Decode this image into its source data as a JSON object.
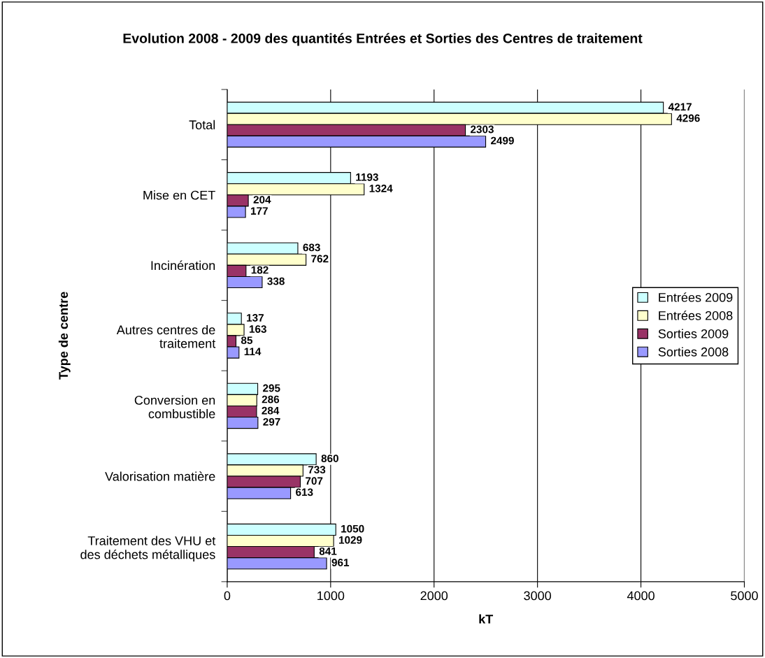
{
  "chart_data": {
    "type": "bar",
    "orientation": "horizontal",
    "title": "Evolution 2008 - 2009 des quantités Entrées et Sorties des Centres de traitement",
    "xlabel": "kT",
    "ylabel": "Type de centre",
    "categories": [
      "Total",
      "Mise en CET",
      "Incinération",
      "Autres centres de\ntraitement",
      "Conversion en\ncombustible",
      "Valorisation matière",
      "Traitement des VHU et\ndes déchets métalliques"
    ],
    "series": [
      {
        "name": "Entrées 2009",
        "color": "#ccffff",
        "values": [
          4217,
          1193,
          683,
          137,
          295,
          860,
          1050
        ]
      },
      {
        "name": "Entrées 2008",
        "color": "#ffffcc",
        "values": [
          4296,
          1324,
          762,
          163,
          286,
          733,
          1029
        ]
      },
      {
        "name": "Sorties 2009",
        "color": "#993366",
        "values": [
          2303,
          204,
          182,
          85,
          284,
          707,
          841
        ]
      },
      {
        "name": "Sorties 2008",
        "color": "#9999ff",
        "values": [
          2499,
          177,
          338,
          114,
          297,
          613,
          961
        ]
      }
    ],
    "xlim": [
      0,
      5000
    ],
    "xticks": [
      0,
      1000,
      2000,
      3000,
      4000,
      5000
    ],
    "grid": "x",
    "legend": "right",
    "data_labels": true
  }
}
